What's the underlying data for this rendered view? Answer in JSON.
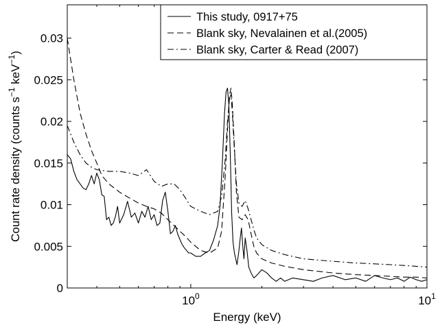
{
  "chart_data": {
    "type": "line",
    "title": "",
    "xlabel": "Energy (keV)",
    "ylabel": {
      "main": "Count rate density (counts s",
      "sup1": "−1",
      "mid": " keV",
      "sup2": "−1",
      "end": ")"
    },
    "xscale": "log",
    "xlim": [
      0.3,
      10
    ],
    "ylim": [
      0,
      0.034
    ],
    "xticks": [
      {
        "value": 1,
        "base": "10",
        "exp": "0"
      },
      {
        "value": 10,
        "base": "10",
        "exp": "1"
      }
    ],
    "yticks": [
      {
        "value": 0,
        "label": "0"
      },
      {
        "value": 0.005,
        "label": "0.005"
      },
      {
        "value": 0.01,
        "label": "0.01"
      },
      {
        "value": 0.015,
        "label": "0.015"
      },
      {
        "value": 0.02,
        "label": "0.02"
      },
      {
        "value": 0.025,
        "label": "0.025"
      },
      {
        "value": 0.03,
        "label": "0.03"
      }
    ],
    "grid": false,
    "legend_position": "top-right",
    "series": [
      {
        "name": "This study, 0917+75",
        "style": "solid",
        "x": [
          0.3,
          0.31,
          0.32,
          0.33,
          0.34,
          0.35,
          0.36,
          0.37,
          0.38,
          0.39,
          0.4,
          0.41,
          0.42,
          0.43,
          0.44,
          0.45,
          0.46,
          0.47,
          0.48,
          0.49,
          0.5,
          0.52,
          0.54,
          0.56,
          0.58,
          0.6,
          0.62,
          0.64,
          0.66,
          0.68,
          0.7,
          0.72,
          0.74,
          0.76,
          0.78,
          0.8,
          0.82,
          0.84,
          0.86,
          0.88,
          0.9,
          0.92,
          0.94,
          0.96,
          0.98,
          1.0,
          1.05,
          1.1,
          1.15,
          1.2,
          1.25,
          1.3,
          1.33,
          1.36,
          1.39,
          1.41,
          1.43,
          1.45,
          1.47,
          1.49,
          1.51,
          1.53,
          1.55,
          1.57,
          1.6,
          1.62,
          1.64,
          1.66,
          1.68,
          1.7,
          1.73,
          1.76,
          1.8,
          1.85,
          1.9,
          2.0,
          2.1,
          2.2,
          2.3,
          2.4,
          2.5,
          2.7,
          3.0,
          3.3,
          3.6,
          4.0,
          4.5,
          5.0,
          5.5,
          6.0,
          6.5,
          7.0,
          7.5,
          8.0,
          8.5,
          9.0,
          9.5,
          10.0
        ],
        "y": [
          0.016,
          0.0155,
          0.014,
          0.013,
          0.0125,
          0.012,
          0.0118,
          0.0125,
          0.0135,
          0.0125,
          0.0138,
          0.013,
          0.0112,
          0.011,
          0.0082,
          0.0085,
          0.0075,
          0.0078,
          0.0086,
          0.0098,
          0.0078,
          0.0088,
          0.0104,
          0.0085,
          0.009,
          0.0078,
          0.0092,
          0.0085,
          0.0098,
          0.0082,
          0.0088,
          0.0075,
          0.0078,
          0.0105,
          0.0115,
          0.0092,
          0.0065,
          0.0068,
          0.0075,
          0.0065,
          0.0058,
          0.0052,
          0.0048,
          0.0045,
          0.0042,
          0.0042,
          0.0038,
          0.0038,
          0.0042,
          0.0045,
          0.0058,
          0.0075,
          0.0098,
          0.015,
          0.021,
          0.0235,
          0.024,
          0.022,
          0.016,
          0.009,
          0.0055,
          0.0042,
          0.0035,
          0.0028,
          0.0045,
          0.006,
          0.0072,
          0.005,
          0.0035,
          0.006,
          0.0045,
          0.0025,
          0.0018,
          0.0012,
          0.0015,
          0.0022,
          0.0018,
          0.0012,
          0.0008,
          0.0012,
          0.0008,
          0.0012,
          0.001,
          0.0008,
          0.0012,
          0.0015,
          0.001,
          0.0012,
          0.0008,
          0.0015,
          0.0012,
          0.001,
          0.0012,
          0.0008,
          0.0013,
          0.001,
          0.0008,
          0.001
        ]
      },
      {
        "name": "Blank sky, Nevalainen et al.(2005)",
        "style": "dashed",
        "x": [
          0.3,
          0.32,
          0.34,
          0.36,
          0.38,
          0.4,
          0.42,
          0.45,
          0.5,
          0.55,
          0.6,
          0.65,
          0.7,
          0.75,
          0.8,
          0.85,
          0.9,
          0.95,
          1.0,
          1.1,
          1.2,
          1.3,
          1.35,
          1.4,
          1.43,
          1.46,
          1.48,
          1.5,
          1.53,
          1.56,
          1.6,
          1.65,
          1.7,
          1.75,
          1.8,
          1.85,
          1.9,
          2.0,
          2.2,
          2.5,
          3.0,
          4.0,
          5.0,
          6.0,
          7.0,
          8.0,
          9.0,
          10.0
        ],
        "y": [
          0.03,
          0.025,
          0.021,
          0.0185,
          0.0165,
          0.015,
          0.0135,
          0.0125,
          0.0115,
          0.0108,
          0.0102,
          0.0098,
          0.0095,
          0.009,
          0.0082,
          0.0075,
          0.0068,
          0.0062,
          0.0055,
          0.0045,
          0.0042,
          0.0048,
          0.0068,
          0.0135,
          0.019,
          0.0232,
          0.024,
          0.022,
          0.017,
          0.0115,
          0.0085,
          0.0082,
          0.0088,
          0.0082,
          0.0065,
          0.005,
          0.0042,
          0.0035,
          0.003,
          0.0026,
          0.0022,
          0.0018,
          0.0016,
          0.0015,
          0.0014,
          0.0013,
          0.0013,
          0.0012
        ]
      },
      {
        "name": "Blank sky, Carter & Read (2007)",
        "style": "dashdot",
        "x": [
          0.3,
          0.32,
          0.34,
          0.36,
          0.38,
          0.4,
          0.45,
          0.5,
          0.55,
          0.6,
          0.65,
          0.7,
          0.75,
          0.8,
          0.85,
          0.9,
          0.95,
          1.0,
          1.1,
          1.2,
          1.3,
          1.35,
          1.4,
          1.43,
          1.46,
          1.48,
          1.5,
          1.53,
          1.56,
          1.6,
          1.65,
          1.7,
          1.75,
          1.8,
          1.85,
          1.9,
          2.0,
          2.2,
          2.5,
          3.0,
          4.0,
          5.0,
          6.0,
          7.0,
          8.0,
          9.0,
          10.0
        ],
        "y": [
          0.0195,
          0.0175,
          0.016,
          0.015,
          0.0145,
          0.0142,
          0.014,
          0.014,
          0.0138,
          0.0135,
          0.0142,
          0.0128,
          0.0122,
          0.0125,
          0.0125,
          0.0118,
          0.0108,
          0.0098,
          0.0092,
          0.0088,
          0.0092,
          0.011,
          0.0155,
          0.02,
          0.0228,
          0.0232,
          0.021,
          0.0165,
          0.0125,
          0.0102,
          0.0098,
          0.0105,
          0.0095,
          0.0082,
          0.007,
          0.006,
          0.0052,
          0.0045,
          0.004,
          0.0035,
          0.0032,
          0.003,
          0.0029,
          0.0028,
          0.0027,
          0.0026,
          0.0025
        ]
      }
    ]
  }
}
